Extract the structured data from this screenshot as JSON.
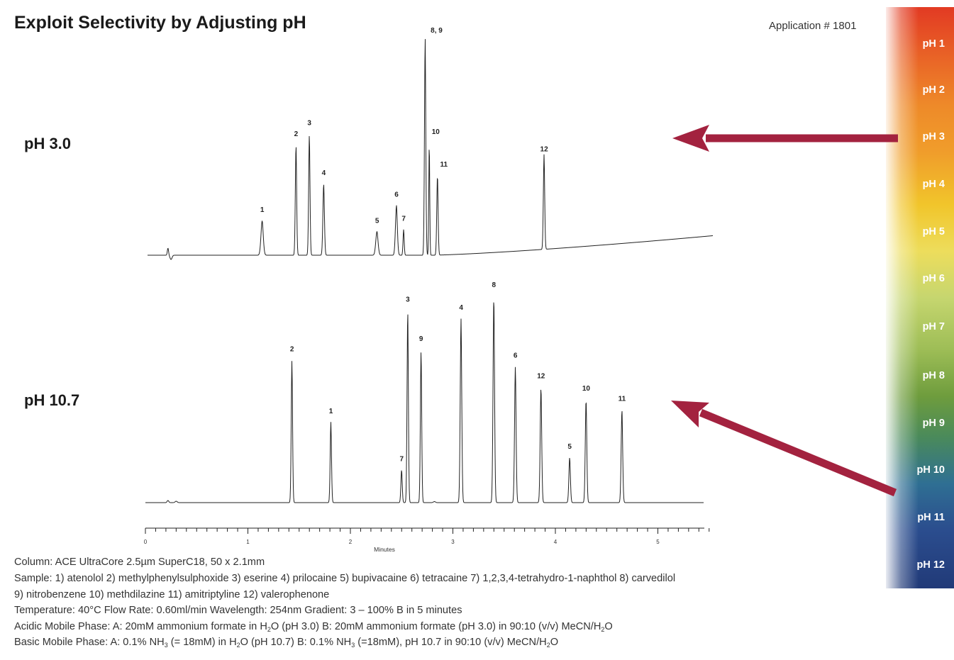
{
  "header": {
    "title": "Exploit Selectivity by Adjusting pH",
    "app_number": "Application # 1801"
  },
  "ph_scale": {
    "items": [
      "pH 1",
      "pH 2",
      "pH 3",
      "pH 4",
      "pH 5",
      "pH 6",
      "pH 7",
      "pH 8",
      "pH 9",
      "pH 10",
      "pH 11",
      "pH 12"
    ]
  },
  "arrow_color": "#a3223f",
  "chart_data": {
    "type": "line",
    "x_axis": {
      "label": "Minutes",
      "range": [
        0,
        5.5
      ],
      "ticks": [
        "0",
        "1",
        "2",
        "3",
        "4",
        "5"
      ],
      "minor_step": 0.1
    },
    "series": [
      {
        "name": "pH 3.0",
        "baseline_drift": 0.09,
        "peaks": [
          {
            "label": "1",
            "x": 1.14,
            "h": 0.16,
            "w": 0.012
          },
          {
            "label": "2",
            "x": 1.47,
            "h": 0.51,
            "w": 0.007
          },
          {
            "label": "3",
            "x": 1.6,
            "h": 0.56,
            "w": 0.007
          },
          {
            "label": "4",
            "x": 1.74,
            "h": 0.33,
            "w": 0.008
          },
          {
            "label": "5",
            "x": 2.26,
            "h": 0.11,
            "w": 0.012
          },
          {
            "label": "6",
            "x": 2.45,
            "h": 0.23,
            "w": 0.01
          },
          {
            "label": "7",
            "x": 2.52,
            "h": 0.12,
            "w": 0.006
          },
          {
            "label": "8, 9",
            "x": 2.73,
            "h": 1.0,
            "w": 0.007
          },
          {
            "label": "10",
            "x": 2.77,
            "h": 0.52,
            "w": 0.005
          },
          {
            "label": "11",
            "x": 2.85,
            "h": 0.37,
            "w": 0.007
          },
          {
            "label": "12",
            "x": 3.89,
            "h": 0.44,
            "w": 0.007
          }
        ]
      },
      {
        "name": "pH 10.7",
        "baseline_drift": 0.0,
        "peaks": [
          {
            "label": "2",
            "x": 1.43,
            "h": 0.69,
            "w": 0.007
          },
          {
            "label": "1",
            "x": 1.81,
            "h": 0.39,
            "w": 0.007
          },
          {
            "label": "7",
            "x": 2.5,
            "h": 0.16,
            "w": 0.007
          },
          {
            "label": "3",
            "x": 2.56,
            "h": 0.93,
            "w": 0.007
          },
          {
            "label": "9",
            "x": 2.69,
            "h": 0.74,
            "w": 0.007
          },
          {
            "label": "4",
            "x": 3.08,
            "h": 0.89,
            "w": 0.008
          },
          {
            "label": "8",
            "x": 3.4,
            "h": 1.0,
            "w": 0.008
          },
          {
            "label": "6",
            "x": 3.61,
            "h": 0.66,
            "w": 0.008
          },
          {
            "label": "12",
            "x": 3.86,
            "h": 0.56,
            "w": 0.008
          },
          {
            "label": "5",
            "x": 4.14,
            "h": 0.22,
            "w": 0.008
          },
          {
            "label": "10",
            "x": 4.3,
            "h": 0.5,
            "w": 0.008
          },
          {
            "label": "11",
            "x": 4.65,
            "h": 0.45,
            "w": 0.008
          }
        ]
      }
    ]
  },
  "conditions": {
    "column": "Column: ACE UltraCore 2.5µm SuperC18, 50 x 2.1mm",
    "sample_1": "Sample: 1) atenolol   2) methylphenylsulphoxide   3) eserine   4) prilocaine   5) bupivacaine   6) tetracaine   7) 1,2,3,4-tetrahydro-1-naphthol   8) carvedilol",
    "sample_2": "9) nitrobenzene   10) methdilazine   11) amitriptyline   12) valerophenone",
    "params": "Temperature: 40°C     Flow Rate: 0.60ml/min     Wavelength: 254nm     Gradient: 3 – 100% B in 5 minutes",
    "acidic": {
      "a": "Acidic Mobile Phase: A: 20mM ammonium formate in H",
      "b": "O (pH 3.0)      B: 20mM ammonium formate (pH 3.0) in 90:10 (v/v) MeCN/H",
      "c": "O",
      "sub1": "2",
      "sub2": "2"
    },
    "basic": {
      "a": "Basic Mobile Phase: A: 0.1% NH",
      "b": " (= 18mM) in H",
      "c": "O (pH 10.7)     B: 0.1% NH",
      "d": " (=18mM), pH 10.7 in 90:10 (v/v) MeCN/H",
      "e": "O",
      "sub_nh3": "3",
      "sub_h2o": "2"
    }
  }
}
